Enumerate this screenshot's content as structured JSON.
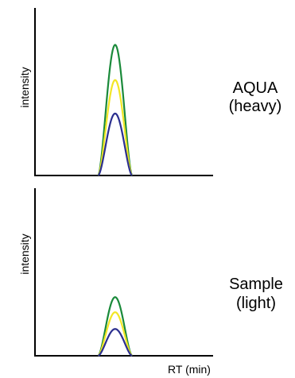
{
  "chart_data": [
    {
      "type": "line",
      "ylabel": "intensity",
      "panel_label_lines": [
        "AQUA",
        "(heavy)"
      ],
      "xlim": [
        0,
        100
      ],
      "ylim": [
        0,
        100
      ],
      "series": [
        {
          "color": "#1a8a3a",
          "peak_center": 45,
          "half_width": 9.5,
          "peak_height": 78
        },
        {
          "color": "#f2e626",
          "peak_center": 45,
          "half_width": 9.5,
          "peak_height": 57
        },
        {
          "color": "#2b2f8f",
          "peak_center": 45,
          "half_width": 9.5,
          "peak_height": 37
        }
      ]
    },
    {
      "type": "line",
      "ylabel": "intensity",
      "xlabel": "RT (min)",
      "panel_label_lines": [
        "Sample",
        "(light)"
      ],
      "xlim": [
        0,
        100
      ],
      "ylim": [
        0,
        100
      ],
      "series": [
        {
          "color": "#1a8a3a",
          "peak_center": 45,
          "half_width": 9.5,
          "peak_height": 35
        },
        {
          "color": "#f2e626",
          "peak_center": 45,
          "half_width": 9.5,
          "peak_height": 26
        },
        {
          "color": "#2b2f8f",
          "peak_center": 45,
          "half_width": 9.5,
          "peak_height": 16
        }
      ]
    }
  ]
}
